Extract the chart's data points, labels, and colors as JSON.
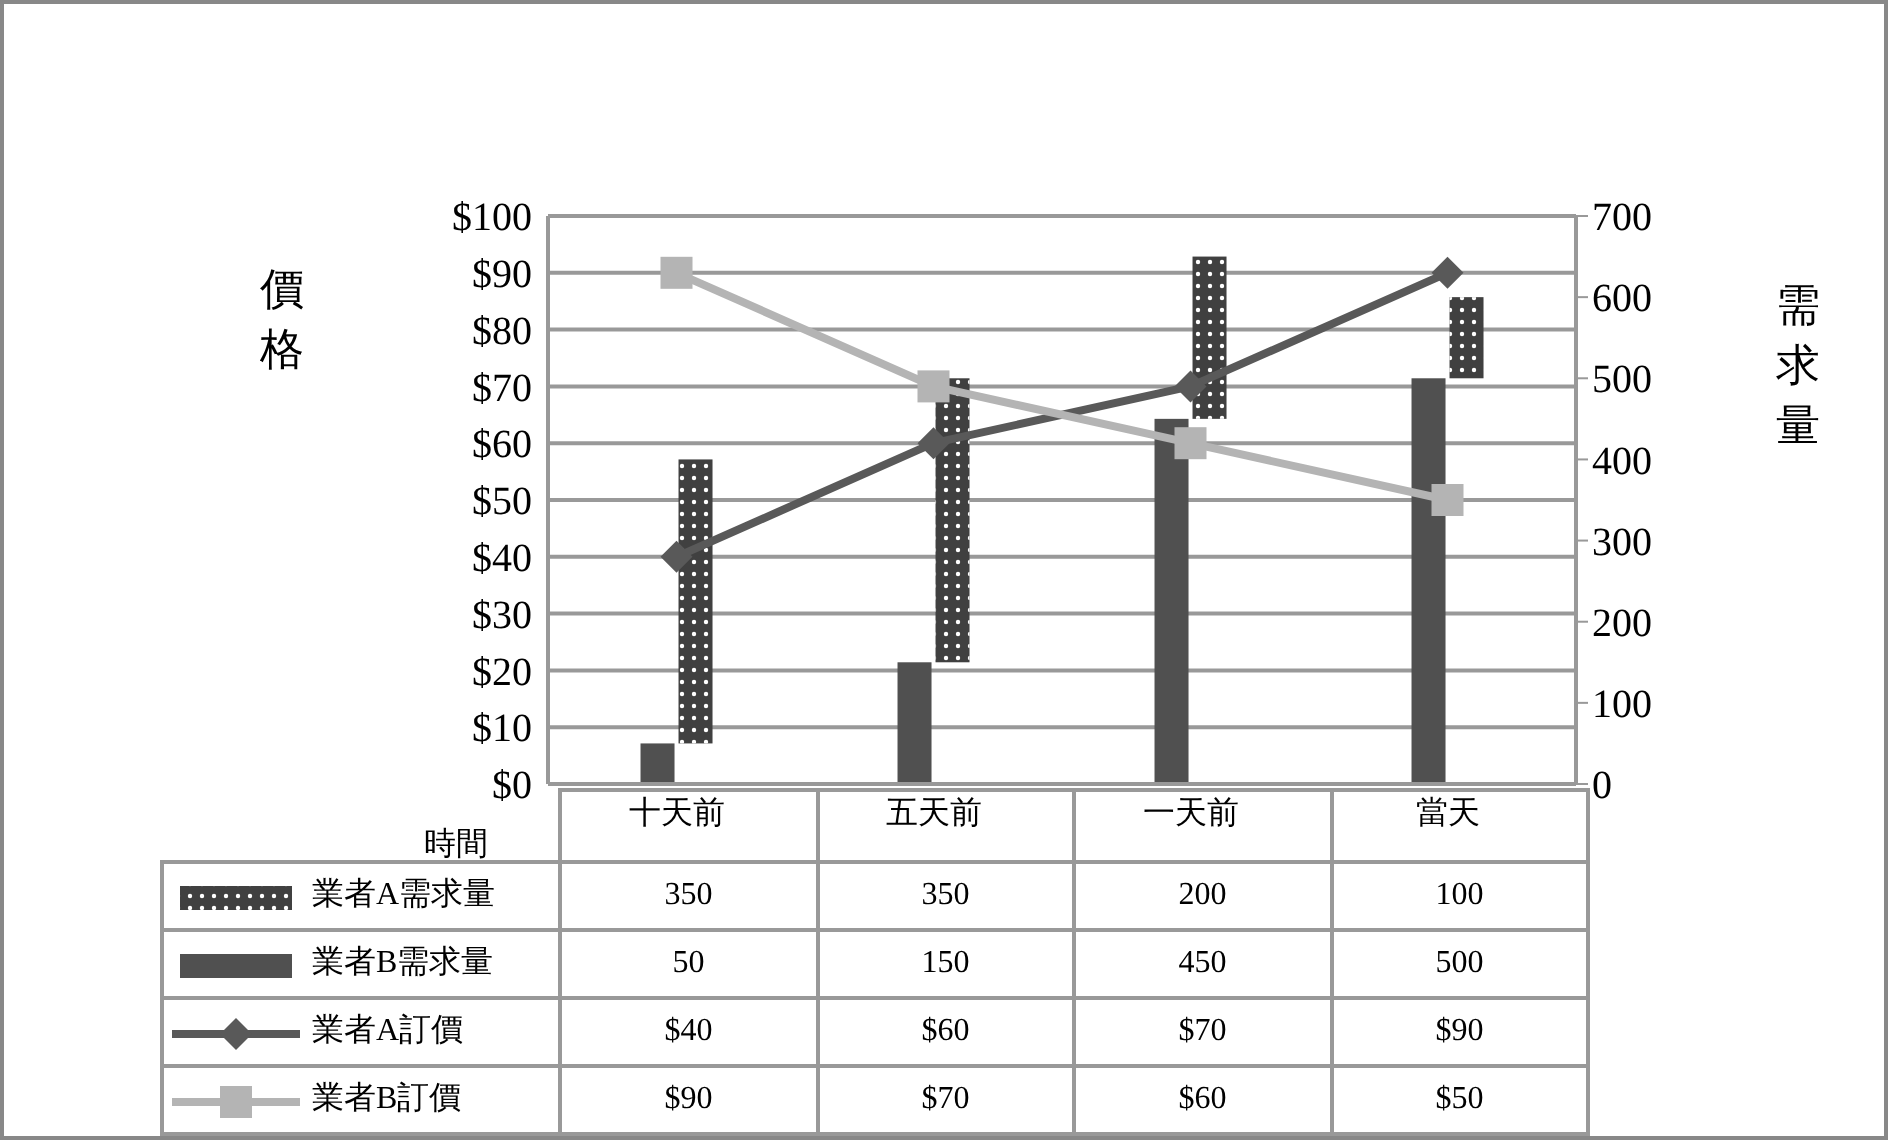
{
  "chart_data": {
    "type": "bar",
    "categories": [
      "十天前",
      "五天前",
      "一天前",
      "當天"
    ],
    "xlabel": "時間",
    "ylabel": "價格",
    "y2label": "需求量",
    "series": [
      {
        "name": "業者A需求量",
        "axis": "y2",
        "color": "#404040",
        "base": [
          50,
          150,
          450,
          500
        ],
        "values": [
          350,
          350,
          200,
          100
        ],
        "value_labels": [
          "350",
          "350",
          "200",
          "100"
        ]
      },
      {
        "name": "業者B需求量",
        "axis": "y2",
        "color": "#505050",
        "values": [
          50,
          150,
          450,
          500
        ],
        "value_labels": [
          "50",
          "150",
          "450",
          "500"
        ]
      },
      {
        "name": "業者A訂價",
        "type": "line",
        "axis": "y",
        "color": "#595959",
        "marker": "diamond",
        "values": [
          40,
          60,
          70,
          90
        ],
        "value_labels": [
          "$40",
          "$60",
          "$70",
          "$90"
        ]
      },
      {
        "name": "業者B訂價",
        "type": "line",
        "axis": "y",
        "color": "#b4b4b4",
        "marker": "square",
        "values": [
          90,
          70,
          60,
          50
        ],
        "value_labels": [
          "$90",
          "$70",
          "$60",
          "$50"
        ]
      }
    ],
    "ylim": [
      0,
      100
    ],
    "yticks": [
      {
        "value": 0,
        "label": "$0"
      },
      {
        "value": 10,
        "label": "$10"
      },
      {
        "value": 20,
        "label": "$20"
      },
      {
        "value": 30,
        "label": "$30"
      },
      {
        "value": 40,
        "label": "$40"
      },
      {
        "value": 50,
        "label": "$50"
      },
      {
        "value": 60,
        "label": "$60"
      },
      {
        "value": 70,
        "label": "$70"
      },
      {
        "value": 80,
        "label": "$80"
      },
      {
        "value": 90,
        "label": "$90"
      },
      {
        "value": 100,
        "label": "$100"
      }
    ],
    "y2lim": [
      0,
      700
    ],
    "y2ticks": [
      0,
      100,
      200,
      300,
      400,
      500,
      600,
      700
    ],
    "grid": "y",
    "legend": "bottom"
  }
}
